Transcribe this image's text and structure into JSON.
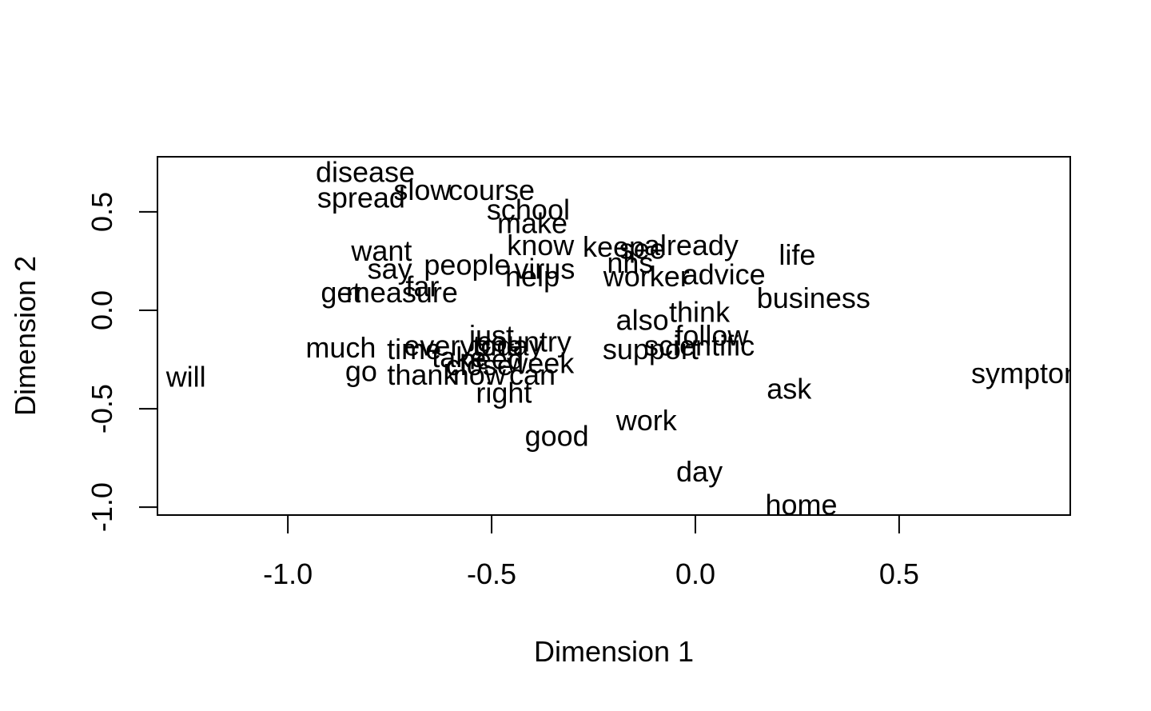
{
  "chart_data": {
    "type": "scatter",
    "title": "",
    "xlabel": "Dimension 1",
    "ylabel": "Dimension 2",
    "xlim": [
      -1.32,
      0.92
    ],
    "ylim": [
      -1.04,
      0.78
    ],
    "x_ticks": [
      {
        "value": -1.0,
        "label": "-1.0"
      },
      {
        "value": -0.5,
        "label": "-0.5"
      },
      {
        "value": 0.0,
        "label": "0.0"
      },
      {
        "value": 0.5,
        "label": "0.5"
      }
    ],
    "y_ticks": [
      {
        "value": -1.0,
        "label": "-1.0"
      },
      {
        "value": -0.5,
        "label": "-0.5"
      },
      {
        "value": 0.0,
        "label": "0.0"
      },
      {
        "value": 0.5,
        "label": "0.5"
      }
    ],
    "grid": false,
    "points": [
      {
        "label": "disease",
        "x": -0.81,
        "y": 0.7
      },
      {
        "label": "slow",
        "x": -0.67,
        "y": 0.61
      },
      {
        "label": "course",
        "x": -0.5,
        "y": 0.61
      },
      {
        "label": "spread",
        "x": -0.82,
        "y": 0.57
      },
      {
        "label": "school",
        "x": -0.41,
        "y": 0.51
      },
      {
        "label": "make",
        "x": -0.4,
        "y": 0.44
      },
      {
        "label": "know",
        "x": -0.38,
        "y": 0.33
      },
      {
        "label": "keep",
        "x": -0.2,
        "y": 0.32
      },
      {
        "label": "already",
        "x": -0.01,
        "y": 0.33
      },
      {
        "label": "see",
        "x": -0.13,
        "y": 0.31
      },
      {
        "label": "want",
        "x": -0.77,
        "y": 0.3
      },
      {
        "label": "life",
        "x": 0.25,
        "y": 0.28
      },
      {
        "label": "nhs",
        "x": -0.16,
        "y": 0.24
      },
      {
        "label": "people",
        "x": -0.56,
        "y": 0.23
      },
      {
        "label": "virus",
        "x": -0.37,
        "y": 0.21
      },
      {
        "label": "say",
        "x": -0.75,
        "y": 0.21
      },
      {
        "label": "help",
        "x": -0.4,
        "y": 0.17
      },
      {
        "label": "worker",
        "x": -0.12,
        "y": 0.17
      },
      {
        "label": "advice",
        "x": 0.07,
        "y": 0.18
      },
      {
        "label": "far",
        "x": -0.67,
        "y": 0.12
      },
      {
        "label": "get",
        "x": -0.87,
        "y": 0.09
      },
      {
        "label": "measure",
        "x": -0.72,
        "y": 0.09
      },
      {
        "label": "business",
        "x": 0.29,
        "y": 0.06
      },
      {
        "label": "think",
        "x": 0.01,
        "y": -0.01
      },
      {
        "label": "also",
        "x": -0.13,
        "y": -0.05
      },
      {
        "label": "just",
        "x": -0.5,
        "y": -0.13
      },
      {
        "label": "follow",
        "x": 0.04,
        "y": -0.13
      },
      {
        "label": "country",
        "x": -0.42,
        "y": -0.16
      },
      {
        "label": "everyone",
        "x": -0.57,
        "y": -0.18
      },
      {
        "label": "today",
        "x": -0.46,
        "y": -0.18
      },
      {
        "label": "scientific",
        "x": 0.01,
        "y": -0.18
      },
      {
        "label": "much",
        "x": -0.87,
        "y": -0.19
      },
      {
        "label": "time",
        "x": -0.69,
        "y": -0.2
      },
      {
        "label": "support",
        "x": -0.11,
        "y": -0.2
      },
      {
        "label": "take",
        "x": -0.58,
        "y": -0.24
      },
      {
        "label": "need",
        "x": -0.5,
        "y": -0.25
      },
      {
        "label": "week",
        "x": -0.38,
        "y": -0.27
      },
      {
        "label": "close",
        "x": -0.53,
        "y": -0.28
      },
      {
        "label": "go",
        "x": -0.82,
        "y": -0.31
      },
      {
        "label": "thank",
        "x": -0.67,
        "y": -0.33
      },
      {
        "label": "now",
        "x": -0.53,
        "y": -0.33
      },
      {
        "label": "can",
        "x": -0.4,
        "y": -0.33
      },
      {
        "label": "will",
        "x": -1.25,
        "y": -0.34
      },
      {
        "label": "symptom",
        "x": 0.82,
        "y": -0.32
      },
      {
        "label": "right",
        "x": -0.47,
        "y": -0.42
      },
      {
        "label": "ask",
        "x": 0.23,
        "y": -0.4
      },
      {
        "label": "work",
        "x": -0.12,
        "y": -0.56
      },
      {
        "label": "good",
        "x": -0.34,
        "y": -0.64
      },
      {
        "label": "day",
        "x": 0.01,
        "y": -0.82
      },
      {
        "label": "home",
        "x": 0.26,
        "y": -0.99
      }
    ]
  }
}
